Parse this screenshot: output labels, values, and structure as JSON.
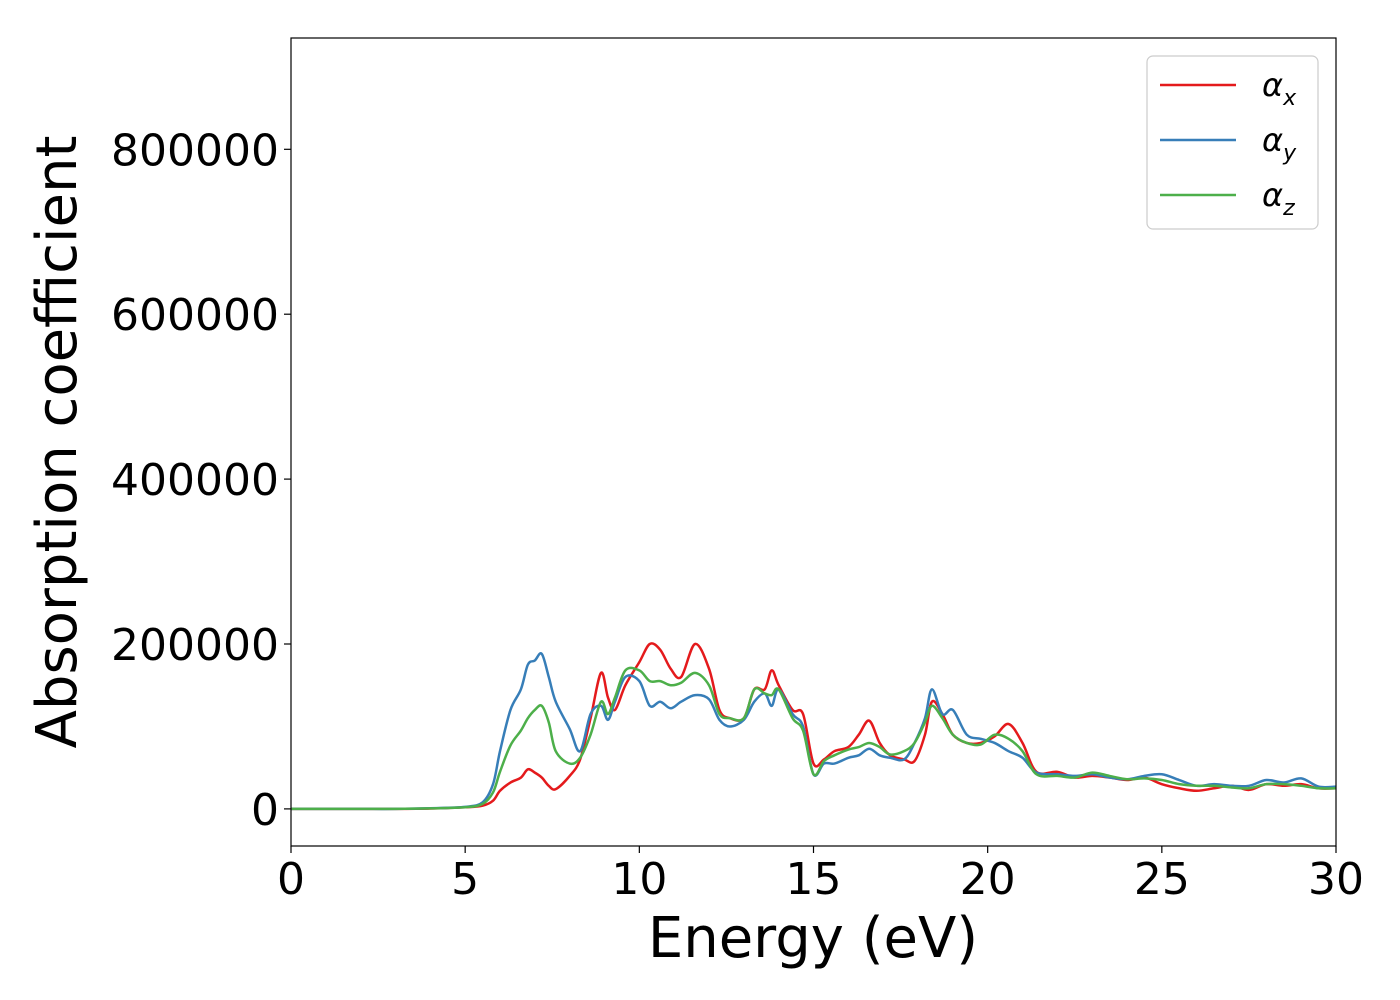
{
  "chart_data": {
    "type": "line",
    "xlabel": "Energy (eV)",
    "ylabel": "Absorption coefficient",
    "xlim": [
      0,
      30
    ],
    "ylim": [
      -45000,
      935000
    ],
    "xticks": [
      "0",
      "5",
      "10",
      "15",
      "20",
      "25",
      "30"
    ],
    "yticks": [
      "0",
      "200000",
      "400000",
      "600000",
      "800000"
    ],
    "grid": false,
    "legend_position": "top-right",
    "series": [
      {
        "name": "α",
        "sub": "x",
        "color": "#e41a1c",
        "x": [
          0,
          1,
          2,
          3,
          4,
          5,
          5.5,
          5.8,
          6.0,
          6.3,
          6.6,
          6.8,
          7.0,
          7.2,
          7.4,
          7.6,
          8.0,
          8.3,
          8.6,
          8.9,
          9.1,
          9.3,
          9.6,
          10.0,
          10.3,
          10.6,
          10.9,
          11.2,
          11.6,
          12.0,
          12.3,
          12.6,
          13.0,
          13.3,
          13.6,
          13.8,
          14.0,
          14.4,
          14.7,
          15.0,
          15.3,
          15.6,
          16.0,
          16.3,
          16.6,
          16.9,
          17.2,
          17.6,
          17.9,
          18.2,
          18.4,
          18.7,
          19.0,
          19.4,
          19.8,
          20.2,
          20.6,
          21.0,
          21.4,
          22.0,
          22.5,
          23.0,
          23.5,
          24.0,
          24.5,
          25.0,
          25.5,
          26.0,
          26.5,
          27.0,
          27.5,
          28.0,
          28.5,
          29.0,
          29.5,
          30.0
        ],
        "values": [
          0,
          0,
          0,
          0,
          500,
          2000,
          4000,
          10000,
          22000,
          32000,
          38000,
          48000,
          44000,
          38000,
          28000,
          24000,
          40000,
          60000,
          110000,
          165000,
          135000,
          120000,
          150000,
          178000,
          200000,
          193000,
          170000,
          160000,
          200000,
          170000,
          120000,
          110000,
          110000,
          145000,
          145000,
          168000,
          150000,
          120000,
          115000,
          55000,
          60000,
          70000,
          75000,
          90000,
          107000,
          80000,
          65000,
          60000,
          58000,
          90000,
          130000,
          115000,
          90000,
          80000,
          80000,
          88000,
          103000,
          80000,
          45000,
          45000,
          38000,
          40000,
          38000,
          35000,
          38000,
          30000,
          25000,
          22000,
          25000,
          28000,
          23000,
          30000,
          28000,
          30000,
          25000,
          25000
        ]
      },
      {
        "name": "α",
        "sub": "y",
        "color": "#377eb8",
        "x": [
          0,
          1,
          2,
          3,
          4,
          5,
          5.5,
          5.8,
          6.0,
          6.3,
          6.6,
          6.8,
          7.0,
          7.2,
          7.4,
          7.6,
          8.0,
          8.3,
          8.6,
          8.9,
          9.1,
          9.3,
          9.6,
          10.0,
          10.3,
          10.6,
          10.9,
          11.2,
          11.6,
          12.0,
          12.3,
          12.6,
          13.0,
          13.3,
          13.6,
          13.8,
          14.0,
          14.4,
          14.7,
          15.0,
          15.3,
          15.6,
          16.0,
          16.3,
          16.6,
          16.9,
          17.2,
          17.6,
          17.9,
          18.2,
          18.4,
          18.7,
          19.0,
          19.4,
          19.8,
          20.2,
          20.6,
          21.0,
          21.4,
          22.0,
          22.5,
          23.0,
          23.5,
          24.0,
          24.5,
          25.0,
          25.5,
          26.0,
          26.5,
          27.0,
          27.5,
          28.0,
          28.5,
          29.0,
          29.5,
          30.0
        ],
        "values": [
          0,
          0,
          0,
          0,
          800,
          2500,
          8000,
          30000,
          70000,
          120000,
          145000,
          175000,
          180000,
          188000,
          160000,
          130000,
          97000,
          70000,
          115000,
          125000,
          108000,
          130000,
          160000,
          155000,
          125000,
          130000,
          122000,
          130000,
          138000,
          133000,
          108000,
          100000,
          108000,
          130000,
          140000,
          125000,
          145000,
          115000,
          100000,
          42000,
          55000,
          55000,
          62000,
          65000,
          73000,
          65000,
          62000,
          60000,
          80000,
          110000,
          145000,
          115000,
          120000,
          90000,
          85000,
          80000,
          70000,
          62000,
          44000,
          42000,
          40000,
          42000,
          38000,
          36000,
          40000,
          42000,
          35000,
          28000,
          30000,
          28000,
          28000,
          35000,
          32000,
          37000,
          27000,
          27000
        ]
      },
      {
        "name": "α",
        "sub": "z",
        "color": "#4daf4a",
        "x": [
          0,
          1,
          2,
          3,
          4,
          5,
          5.5,
          5.8,
          6.0,
          6.3,
          6.6,
          6.8,
          7.0,
          7.2,
          7.4,
          7.6,
          8.0,
          8.3,
          8.6,
          8.9,
          9.1,
          9.3,
          9.6,
          10.0,
          10.3,
          10.6,
          10.9,
          11.2,
          11.6,
          12.0,
          12.3,
          12.6,
          13.0,
          13.3,
          13.6,
          13.8,
          14.0,
          14.4,
          14.7,
          15.0,
          15.3,
          15.6,
          16.0,
          16.3,
          16.6,
          16.9,
          17.2,
          17.6,
          17.9,
          18.2,
          18.4,
          18.7,
          19.0,
          19.4,
          19.8,
          20.2,
          20.6,
          21.0,
          21.4,
          22.0,
          22.5,
          23.0,
          23.5,
          24.0,
          24.5,
          25.0,
          25.5,
          26.0,
          26.5,
          27.0,
          27.5,
          28.0,
          28.5,
          29.0,
          29.5,
          30.0
        ],
        "values": [
          0,
          0,
          0,
          0,
          600,
          2000,
          6000,
          20000,
          45000,
          77000,
          95000,
          110000,
          120000,
          125000,
          105000,
          70000,
          55000,
          62000,
          90000,
          130000,
          115000,
          135000,
          168000,
          168000,
          155000,
          155000,
          150000,
          153000,
          165000,
          150000,
          115000,
          110000,
          110000,
          145000,
          140000,
          138000,
          145000,
          110000,
          95000,
          42000,
          58000,
          65000,
          72000,
          75000,
          80000,
          75000,
          66000,
          70000,
          80000,
          105000,
          125000,
          110000,
          90000,
          80000,
          78000,
          90000,
          85000,
          70000,
          42000,
          40000,
          38000,
          44000,
          40000,
          36000,
          37000,
          35000,
          30000,
          28000,
          28000,
          26000,
          25000,
          30000,
          30000,
          28000,
          25000,
          25000
        ]
      }
    ]
  }
}
